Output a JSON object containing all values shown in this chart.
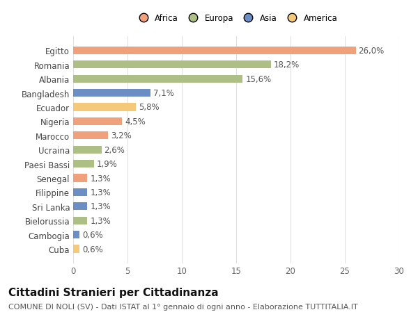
{
  "categories": [
    "Cuba",
    "Cambogia",
    "Bielorussia",
    "Sri Lanka",
    "Filippine",
    "Senegal",
    "Paesi Bassi",
    "Ucraina",
    "Marocco",
    "Nigeria",
    "Ecuador",
    "Bangladesh",
    "Albania",
    "Romania",
    "Egitto"
  ],
  "values": [
    0.6,
    0.6,
    1.3,
    1.3,
    1.3,
    1.3,
    1.9,
    2.6,
    3.2,
    4.5,
    5.8,
    7.1,
    15.6,
    18.2,
    26.0
  ],
  "labels": [
    "0,6%",
    "0,6%",
    "1,3%",
    "1,3%",
    "1,3%",
    "1,3%",
    "1,9%",
    "2,6%",
    "3,2%",
    "4,5%",
    "5,8%",
    "7,1%",
    "15,6%",
    "18,2%",
    "26,0%"
  ],
  "colors": [
    "#F5C97A",
    "#6B8EC4",
    "#ADBF85",
    "#6B8EC4",
    "#6B8EC4",
    "#F0A07A",
    "#ADBF85",
    "#ADBF85",
    "#F0A07A",
    "#F0A07A",
    "#F5C97A",
    "#6B8EC4",
    "#ADBF85",
    "#ADBF85",
    "#F0A07A"
  ],
  "legend": [
    {
      "label": "Africa",
      "color": "#F0A07A"
    },
    {
      "label": "Europa",
      "color": "#ADBF85"
    },
    {
      "label": "Asia",
      "color": "#6B8EC4"
    },
    {
      "label": "America",
      "color": "#F5C97A"
    }
  ],
  "title": "Cittadini Stranieri per Cittadinanza",
  "subtitle": "COMUNE DI NOLI (SV) - Dati ISTAT al 1° gennaio di ogni anno - Elaborazione TUTTITALIA.IT",
  "xlim": [
    0,
    30
  ],
  "xticks": [
    0,
    5,
    10,
    15,
    20,
    25,
    30
  ],
  "background_color": "#ffffff",
  "grid_color": "#e0e0e0",
  "bar_height": 0.55,
  "label_fontsize": 8.5,
  "tick_fontsize": 8.5,
  "title_fontsize": 11,
  "subtitle_fontsize": 8
}
